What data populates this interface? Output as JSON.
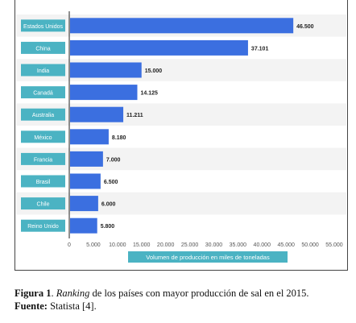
{
  "chart_data": {
    "type": "bar",
    "orientation": "horizontal",
    "categories": [
      "Estados Unidos",
      "China",
      "India",
      "Canadá",
      "Australia",
      "México",
      "Francia",
      "Brasil",
      "Chile",
      "Reino Unido"
    ],
    "values": [
      46500,
      37101,
      15000,
      14125,
      11211,
      8180,
      7000,
      6500,
      6000,
      5800
    ],
    "value_labels": [
      "46.500",
      "37.101",
      "15.000",
      "14.125",
      "11.211",
      "8.180",
      "7.000",
      "6.500",
      "6.000",
      "5.800"
    ],
    "xticks": [
      0,
      5000,
      10000,
      15000,
      20000,
      25000,
      30000,
      35000,
      40000,
      45000,
      50000,
      55000
    ],
    "xtick_labels": [
      "0",
      "5.000",
      "10.000",
      "15.000",
      "20.000",
      "25.000",
      "30.000",
      "35.000",
      "40.000",
      "45.000",
      "50.000",
      "55.000"
    ],
    "xlim": [
      0,
      55000
    ],
    "xlabel": "Volumen de producción en miles de toneladas",
    "title": "",
    "ylabel": "",
    "grid": false,
    "colors": {
      "bar": "#3b6fe0",
      "label_box": "#4bb3c3",
      "stripe": "#f3f3f3"
    }
  },
  "caption": {
    "figure_label": "Figura 1",
    "text_before": ". ",
    "italic": "Ranking",
    "text_after": " de los países con mayor producción de sal en el 2015.",
    "source_label": "Fuente:",
    "source_text": " Statista [4]."
  }
}
